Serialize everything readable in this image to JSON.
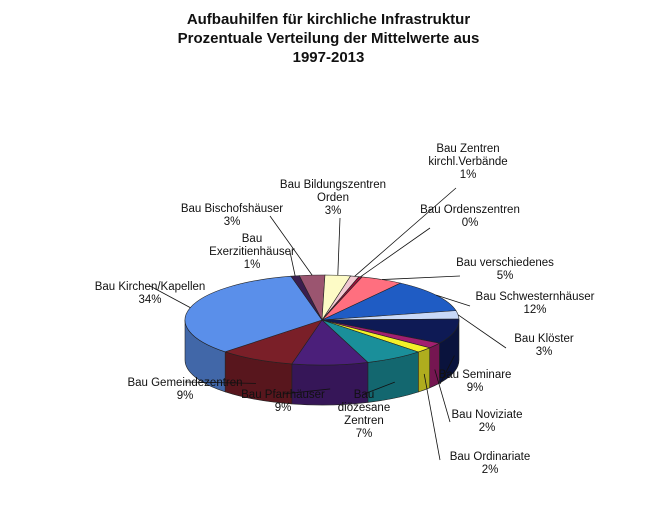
{
  "chart_data": {
    "type": "pie",
    "style": "3d",
    "title": [
      "Aufbauhilfen für kirchliche Infrastruktur",
      "Prozentuale Verteilung der Mittelwerte aus",
      "1997-2013"
    ],
    "slices": [
      {
        "label": [
          "Bau Zentren",
          "kirchl.Verbände"
        ],
        "value_label": "1%",
        "value": 1,
        "color": "#f2c9d2"
      },
      {
        "label": [
          "Bau Ordenszentren"
        ],
        "value_label": "0%",
        "value": 0.4,
        "color": "#a0103a"
      },
      {
        "label": [
          "Bau verschiedenes"
        ],
        "value_label": "5%",
        "value": 5,
        "color": "#ff6f7f"
      },
      {
        "label": [
          "Bau Schwesternhäuser"
        ],
        "value_label": "12%",
        "value": 12,
        "color": "#1f5cc4"
      },
      {
        "label": [
          "Bau Klöster"
        ],
        "value_label": "3%",
        "value": 3,
        "color": "#c9d9f7"
      },
      {
        "label": [
          "Bau Seminare"
        ],
        "value_label": "9%",
        "value": 9,
        "color": "#0e1a55"
      },
      {
        "label": [
          "Bau Noviziate"
        ],
        "value_label": "2%",
        "value": 2,
        "color": "#a21f70"
      },
      {
        "label": [
          "Bau Ordinariate"
        ],
        "value_label": "2%",
        "value": 2,
        "color": "#f3f02a"
      },
      {
        "label": [
          "Bau",
          "diözesane",
          "Zentren"
        ],
        "value_label": "7%",
        "value": 7,
        "color": "#1a8f9a"
      },
      {
        "label": [
          "Bau Pfarrhäuser"
        ],
        "value_label": "9%",
        "value": 9,
        "color": "#4b1f7a"
      },
      {
        "label": [
          "Bau Gemeindezentren"
        ],
        "value_label": "9%",
        "value": 9,
        "color": "#7a1f28"
      },
      {
        "label": [
          "Bau Kirchen/Kapellen"
        ],
        "value_label": "34%",
        "value": 34,
        "color": "#5a8fea"
      },
      {
        "label": [
          "Bau",
          "Exerzitienhäuser"
        ],
        "value_label": "1%",
        "value": 1,
        "color": "#3a1e4e"
      },
      {
        "label": [
          "Bau Bischofshäuser"
        ],
        "value_label": "3%",
        "value": 3,
        "color": "#9b5570"
      },
      {
        "label": [
          "Bau Bildungszentren",
          "Orden"
        ],
        "value_label": "3%",
        "value": 3,
        "color": "#fdfbc6"
      }
    ]
  }
}
